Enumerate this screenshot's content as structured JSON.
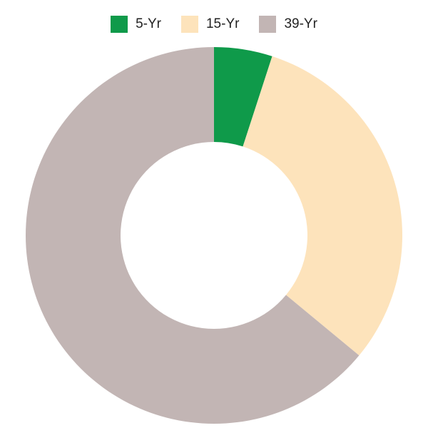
{
  "chart_data": {
    "type": "donut",
    "categories": [
      "5-Yr",
      "15-Yr",
      "39-Yr"
    ],
    "values": [
      5,
      31,
      64
    ],
    "colors": [
      "#0f9a4a",
      "#fde3bb",
      "#c2b5b4"
    ],
    "legend": "top"
  }
}
